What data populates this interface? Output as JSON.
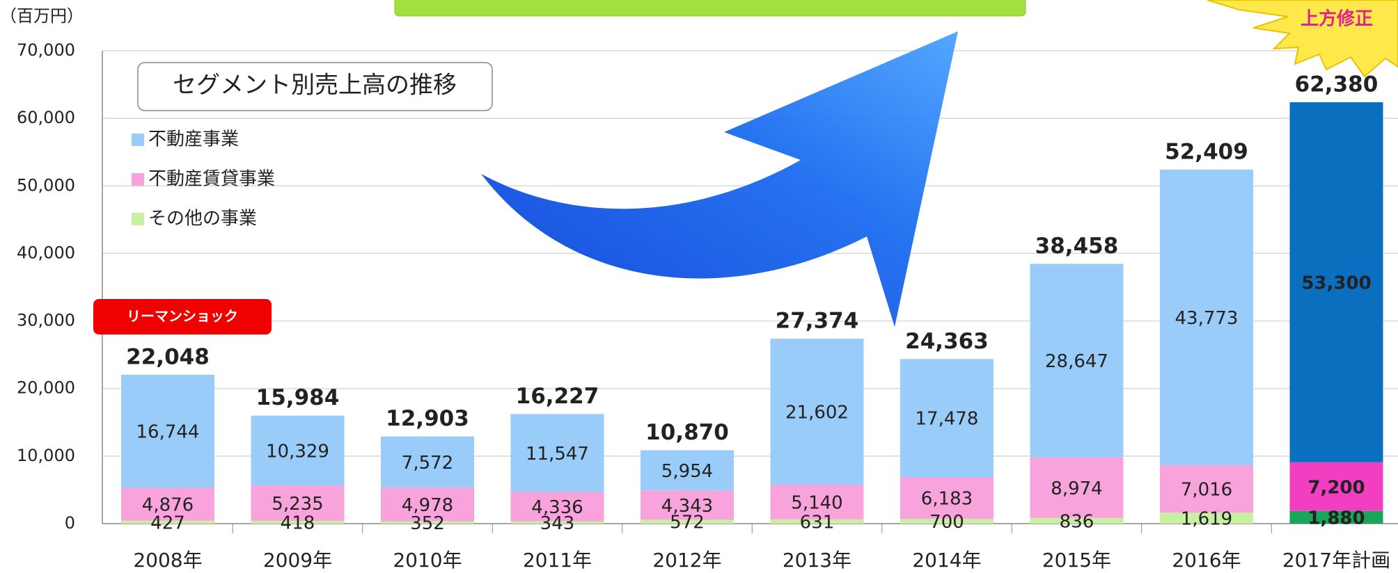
{
  "chart_data": {
    "type": "stacked-bar",
    "unit_label": "（百万円）",
    "legend_title": "セグメント別売上高の推移",
    "annotation": "リーマンショック",
    "badge": "上方修正",
    "categories": [
      "2008年",
      "2009年",
      "2010年",
      "2011年",
      "2012年",
      "2013年",
      "2014年",
      "2015年",
      "2016年",
      "2017年計画"
    ],
    "series": [
      {
        "name": "その他の事業",
        "color": "#c9f0a0",
        "colors": [
          "#c9f0a0",
          "#c9f0a0",
          "#c9f0a0",
          "#c9f0a0",
          "#c9f0a0",
          "#c9f0a0",
          "#c9f0a0",
          "#c9f0a0",
          "#c9f0a0",
          "#1aa55a"
        ],
        "values": [
          427,
          418,
          352,
          343,
          572,
          631,
          700,
          836,
          1619,
          1880
        ],
        "value_labels": [
          "427",
          "418",
          "352",
          "343",
          "572",
          "631",
          "700",
          "836",
          "1,619",
          "1,880"
        ]
      },
      {
        "name": "不動産賃貸事業",
        "color": "#f9a3dc",
        "colors": [
          "#f9a3dc",
          "#f9a3dc",
          "#f9a3dc",
          "#f9a3dc",
          "#f9a3dc",
          "#f9a3dc",
          "#f9a3dc",
          "#f9a3dc",
          "#f9a3dc",
          "#f23fc2"
        ],
        "values": [
          4876,
          5235,
          4978,
          4336,
          4343,
          5140,
          6183,
          8974,
          7016,
          7200
        ],
        "value_labels": [
          "4,876",
          "5,235",
          "4,978",
          "4,336",
          "4,343",
          "5,140",
          "6,183",
          "8,974",
          "7,016",
          "7,200"
        ]
      },
      {
        "name": "不動産事業",
        "color": "#99ccf8",
        "colors": [
          "#99ccf8",
          "#99ccf8",
          "#99ccf8",
          "#99ccf8",
          "#99ccf8",
          "#99ccf8",
          "#99ccf8",
          "#99ccf8",
          "#99ccf8",
          "#0b6fbf"
        ],
        "values": [
          16744,
          10329,
          7572,
          11547,
          5954,
          21602,
          17478,
          28647,
          43773,
          53300
        ],
        "value_labels": [
          "16,744",
          "10,329",
          "7,572",
          "11,547",
          "5,954",
          "21,602",
          "17,478",
          "28,647",
          "43,773",
          "53,300"
        ]
      }
    ],
    "totals": [
      22048,
      15984,
      12903,
      16227,
      10870,
      27374,
      24363,
      38458,
      52409,
      62380
    ],
    "total_labels": [
      "22,048",
      "15,984",
      "12,903",
      "16,227",
      "10,870",
      "27,374",
      "24,363",
      "38,458",
      "52,409",
      "62,380"
    ],
    "ylim": [
      0,
      70000
    ],
    "yticks": [
      0,
      {
        "value": 10000,
        "label": "10,000"
      },
      {
        "value": 20000,
        "label": "20,000"
      },
      {
        "value": 30000,
        "label": "30,000"
      },
      {
        "value": 40000,
        "label": "40,000"
      },
      {
        "value": 50000,
        "label": "50,000"
      },
      {
        "value": 60000,
        "label": "60,000"
      },
      {
        "value": 70000,
        "label": "70,000"
      }
    ],
    "grid": true
  }
}
